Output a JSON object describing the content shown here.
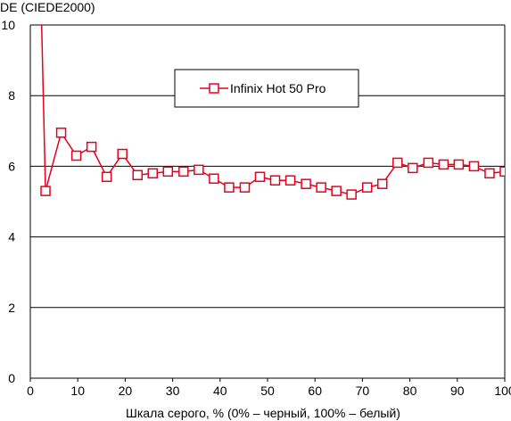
{
  "chart_data": {
    "type": "line",
    "title": "",
    "ylabel": "DE (CIEDE2000)",
    "xlabel": "Шкала серого, % (0% – черный, 100% – белый)",
    "xlim": [
      0,
      100
    ],
    "ylim": [
      0,
      10
    ],
    "xticks": [
      0,
      10,
      20,
      30,
      40,
      50,
      60,
      70,
      80,
      90,
      100
    ],
    "yticks": [
      0,
      2,
      4,
      6,
      8,
      10
    ],
    "grid": "horizontal",
    "legend_position": "top-center",
    "series": [
      {
        "name": "Infinix Hot 50 Pro",
        "color": "#e8001c",
        "marker": "square-open",
        "x": [
          2.3,
          3.2,
          6.5,
          9.7,
          12.9,
          16.1,
          19.4,
          22.6,
          25.8,
          29.0,
          32.3,
          35.5,
          38.7,
          41.9,
          45.2,
          48.4,
          51.6,
          54.8,
          58.1,
          61.3,
          64.5,
          67.7,
          71.0,
          74.2,
          77.4,
          80.6,
          83.9,
          87.1,
          90.3,
          93.5,
          96.8,
          100
        ],
        "y": [
          10.5,
          5.3,
          6.95,
          6.3,
          6.55,
          5.7,
          6.35,
          5.75,
          5.8,
          5.85,
          5.85,
          5.9,
          5.65,
          5.4,
          5.4,
          5.7,
          5.6,
          5.6,
          5.5,
          5.4,
          5.3,
          5.2,
          5.4,
          5.5,
          6.1,
          5.95,
          6.1,
          6.05,
          6.05,
          6.0,
          5.8,
          5.85
        ],
        "marker_mask": [
          false,
          true,
          true,
          true,
          true,
          true,
          true,
          true,
          true,
          true,
          true,
          true,
          true,
          true,
          true,
          true,
          true,
          true,
          true,
          true,
          true,
          true,
          true,
          true,
          true,
          true,
          true,
          true,
          true,
          true,
          true,
          true
        ]
      }
    ]
  }
}
